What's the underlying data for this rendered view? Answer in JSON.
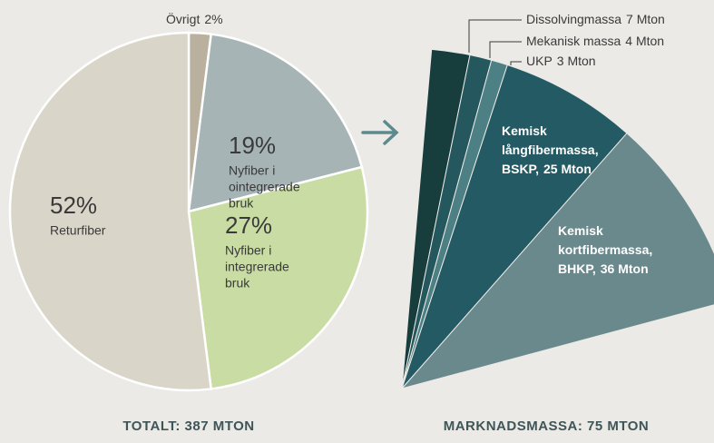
{
  "chart_data": [
    {
      "type": "pie",
      "title": "TOTALT: 387 MTON",
      "categories": [
        [
          "Övrigt"
        ],
        [
          "Nyfiber i",
          "ointegrerade",
          "bruk"
        ],
        [
          "Nyfiber i",
          "integrerade",
          "bruk"
        ],
        [
          "Returfiber"
        ]
      ],
      "values": [
        2,
        19,
        27,
        52
      ],
      "value_labels": [
        "2%",
        "19%",
        "27%",
        "52%"
      ],
      "colors": [
        "#b9b09d",
        "#a7b4b5",
        "#c9dca3",
        "#d9d5c8"
      ]
    },
    {
      "type": "pie",
      "title": "MARKNADSMASSA: 75 MTON",
      "categories": [
        [
          "Dissolvingmassa"
        ],
        [
          "Mekanisk massa"
        ],
        [
          "UKP"
        ],
        [
          "Kemisk",
          "långfibermassa,",
          "BSKP,"
        ],
        [
          "Kemisk",
          "kortfibermassa,",
          "BHKP,"
        ]
      ],
      "values": [
        7,
        4,
        3,
        25,
        36
      ],
      "value_labels": [
        "7 Mton",
        "4 Mton",
        "3 Mton",
        "25 Mton",
        "36 Mton"
      ],
      "colors": [
        "#173d3d",
        "#24575e",
        "#4d8084",
        "#235a63",
        "#6a898d"
      ]
    }
  ]
}
